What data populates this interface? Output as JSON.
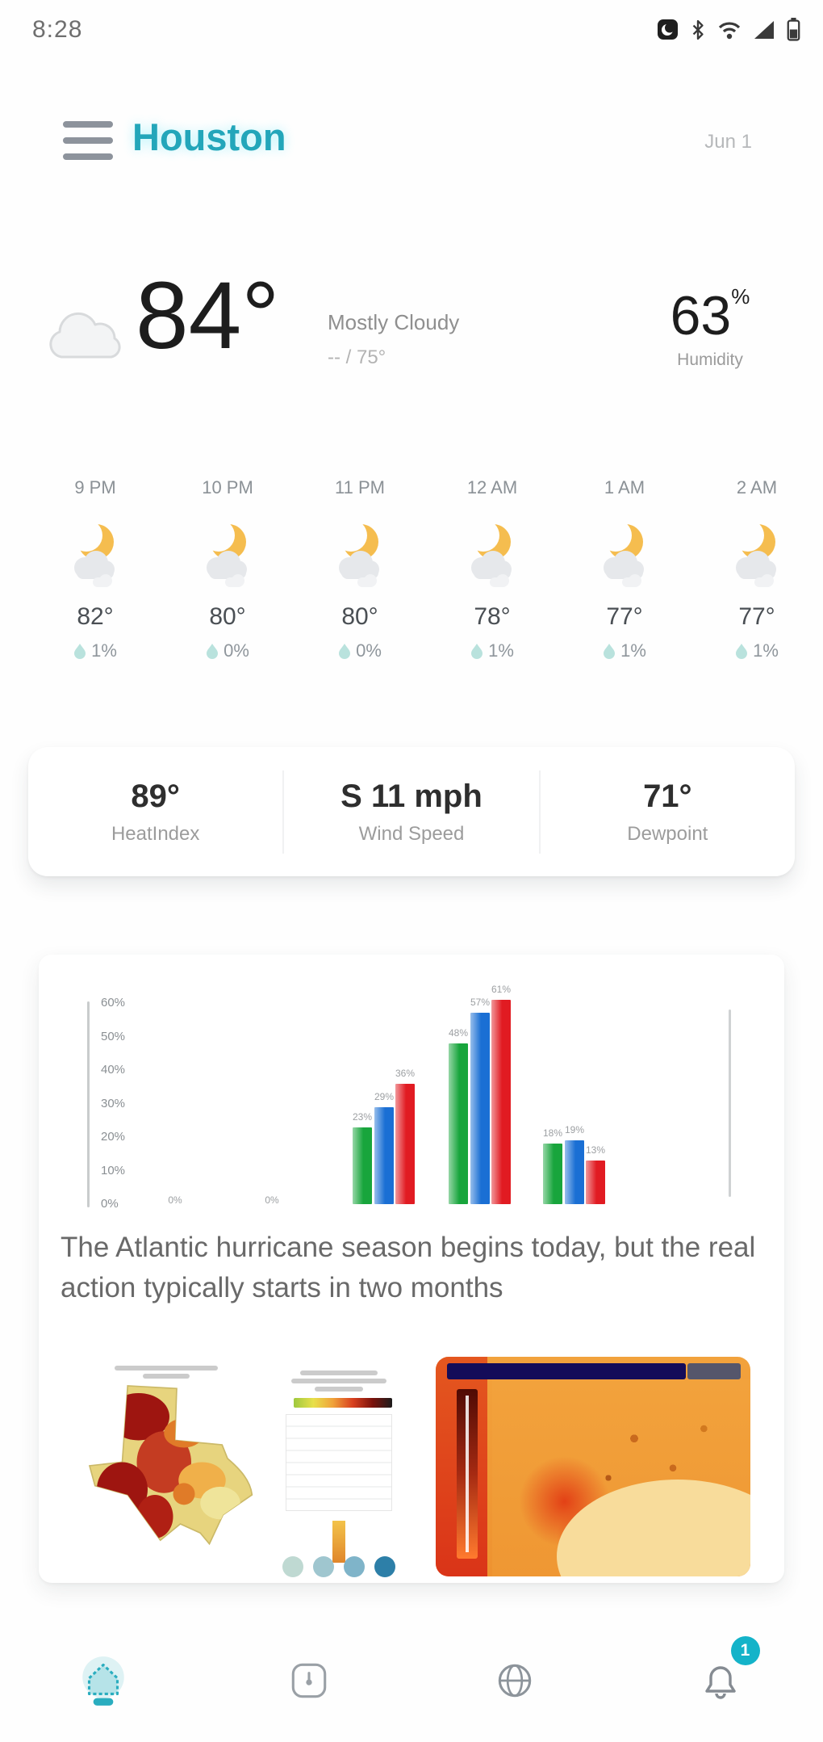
{
  "status_bar": {
    "time": "8:28",
    "icons": [
      "notification-icon",
      "bluetooth-icon",
      "wifi-icon",
      "signal-icon",
      "battery-icon"
    ]
  },
  "header": {
    "city": "Houston",
    "date": "Jun 1"
  },
  "current": {
    "icon": "cloudy-icon",
    "temperature": "84°",
    "condition": "Mostly Cloudy",
    "high_low": "-- / 75°",
    "humidity": {
      "value": "63",
      "unit": "%",
      "label": "Humidity"
    }
  },
  "hourly": {
    "items": [
      {
        "time": "9 PM",
        "icon": "moon-cloud-icon",
        "temp": "82°",
        "precip": "1%"
      },
      {
        "time": "10 PM",
        "icon": "moon-cloud-icon",
        "temp": "80°",
        "precip": "0%"
      },
      {
        "time": "11 PM",
        "icon": "moon-cloud-icon",
        "temp": "80°",
        "precip": "0%"
      },
      {
        "time": "12 AM",
        "icon": "moon-cloud-icon",
        "temp": "78°",
        "precip": "1%"
      },
      {
        "time": "1 AM",
        "icon": "moon-cloud-icon",
        "temp": "77°",
        "precip": "1%"
      },
      {
        "time": "2 AM",
        "icon": "moon-cloud-icon",
        "temp": "77°",
        "precip": "1%"
      }
    ]
  },
  "stats": {
    "items": [
      {
        "value": "89°",
        "label": "HeatIndex"
      },
      {
        "value": "S 11 mph",
        "label": "Wind Speed"
      },
      {
        "value": "71°",
        "label": "Dewpoint"
      }
    ]
  },
  "news": {
    "headline": "The Atlantic hurricane season begins today, but the real action typically starts in two months",
    "thumbnails": [
      "texas-drought-map-thumbnail",
      "forecast-table-thumbnail",
      "heat-map-thumbnail"
    ]
  },
  "chart_data": {
    "type": "bar",
    "title": "",
    "categories": [
      "",
      "",
      "",
      "",
      ""
    ],
    "series": [
      {
        "name": "green",
        "color": "#18a53c",
        "values": [
          0,
          0,
          23,
          48,
          18
        ]
      },
      {
        "name": "blue",
        "color": "#1a6fd4",
        "values": [
          0,
          0,
          29,
          57,
          19
        ]
      },
      {
        "name": "red",
        "color": "#e11b22",
        "values": [
          0,
          0,
          36,
          61,
          13
        ]
      }
    ],
    "yticks": [
      "60%",
      "50%",
      "40%",
      "30%",
      "20%",
      "10%",
      "0%"
    ],
    "ylim": [
      0,
      62
    ],
    "grid": false,
    "legend": "none"
  },
  "nav": {
    "items": [
      {
        "name": "home",
        "active": true
      },
      {
        "name": "radar"
      },
      {
        "name": "globe"
      },
      {
        "name": "alerts",
        "badge": "1"
      }
    ]
  },
  "colors": {
    "accent_teal": "#23a6ba",
    "bar_green": "#18a53c",
    "bar_blue": "#1a6fd4",
    "bar_red": "#e11b22",
    "badge_teal": "#14b3c9"
  }
}
